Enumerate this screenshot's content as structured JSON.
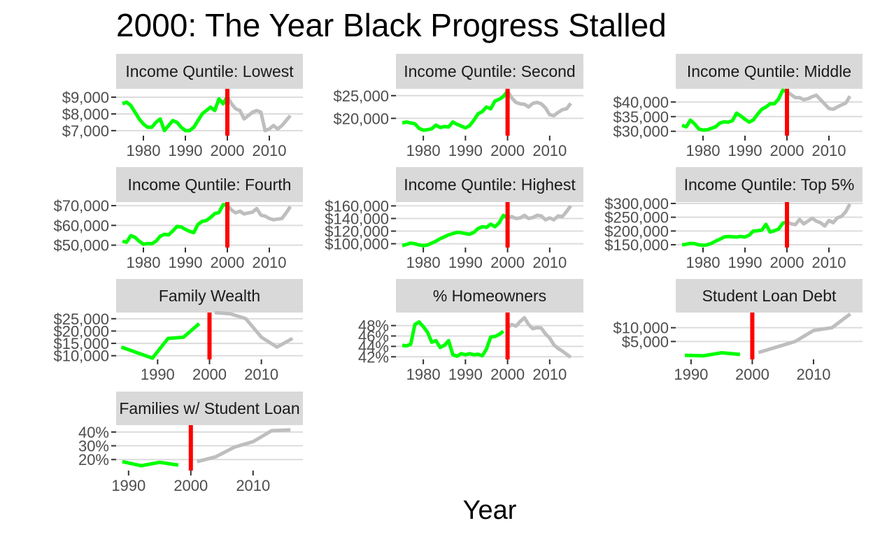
{
  "title": "2000: The Year Black Progress Stalled",
  "xlabel": "Year",
  "colors": {
    "pre": "#00ff00",
    "post": "#bebebe",
    "vline": "#ff0000",
    "strip": "#d9d9d9"
  },
  "chart_data": [
    {
      "type": "line",
      "title": "Income Quntile: Lowest",
      "xlim": [
        1973.5,
        2018
      ],
      "ylim": [
        6700,
        9500
      ],
      "xticks": [
        1980,
        1990,
        2000,
        2010
      ],
      "xtick_labels": [
        "1980",
        "1990",
        "2000",
        "2010"
      ],
      "yticks": [
        7000,
        8000,
        9000
      ],
      "ytick_labels": [
        "$7,000",
        "$8,000",
        "$9,000"
      ],
      "vline": 2000,
      "series": [
        {
          "role": "pre",
          "x": [
            1975,
            1976,
            1977,
            1978,
            1979,
            1980,
            1981,
            1982,
            1983,
            1984,
            1985,
            1986,
            1987,
            1988,
            1989,
            1990,
            1991,
            1992,
            1993,
            1994,
            1995,
            1996,
            1997,
            1998,
            1999,
            2000
          ],
          "y": [
            8600,
            8700,
            8500,
            8100,
            7700,
            7400,
            7200,
            7200,
            7500,
            7700,
            7000,
            7300,
            7600,
            7500,
            7200,
            7000,
            7000,
            7200,
            7600,
            8000,
            8200,
            8400,
            8200,
            8900,
            8600,
            9050
          ]
        },
        {
          "role": "post",
          "x": [
            2000,
            2001,
            2002,
            2003,
            2004,
            2005,
            2006,
            2007,
            2008,
            2009,
            2010,
            2011,
            2012,
            2013,
            2014,
            2015
          ],
          "y": [
            9050,
            8600,
            8300,
            8200,
            7700,
            7900,
            8100,
            8200,
            8100,
            7000,
            7100,
            7300,
            7100,
            7300,
            7600,
            7900
          ]
        }
      ]
    },
    {
      "type": "line",
      "title": "Income Quntile: Second",
      "xlim": [
        1973.5,
        2018
      ],
      "ylim": [
        16200,
        26500
      ],
      "xticks": [
        1980,
        1990,
        2000,
        2010
      ],
      "xtick_labels": [
        "1980",
        "1990",
        "2000",
        "2010"
      ],
      "yticks": [
        20000,
        25000
      ],
      "ytick_labels": [
        "$20,000",
        "$25,000"
      ],
      "vline": 2000,
      "series": [
        {
          "role": "pre",
          "x": [
            1975,
            1976,
            1977,
            1978,
            1979,
            1980,
            1981,
            1982,
            1983,
            1984,
            1985,
            1986,
            1987,
            1988,
            1989,
            1990,
            1991,
            1992,
            1993,
            1994,
            1995,
            1996,
            1997,
            1998,
            1999,
            2000
          ],
          "y": [
            19000,
            19200,
            19000,
            18800,
            17800,
            17400,
            17500,
            17700,
            18500,
            18000,
            18200,
            18100,
            19200,
            18700,
            18300,
            17900,
            18400,
            19600,
            21000,
            21500,
            22500,
            22100,
            23800,
            24200,
            24800,
            26000
          ]
        },
        {
          "role": "post",
          "x": [
            2000,
            2001,
            2002,
            2003,
            2004,
            2005,
            2006,
            2007,
            2008,
            2009,
            2010,
            2011,
            2012,
            2013,
            2014,
            2015
          ],
          "y": [
            26000,
            24500,
            23500,
            23200,
            23100,
            22500,
            23300,
            23500,
            23200,
            22300,
            20800,
            20600,
            21300,
            21900,
            22100,
            23300
          ]
        }
      ]
    },
    {
      "type": "line",
      "title": "Income Quntile: Middle",
      "xlim": [
        1973.5,
        2018
      ],
      "ylim": [
        28500,
        44500
      ],
      "xticks": [
        1980,
        1990,
        2000,
        2010
      ],
      "xtick_labels": [
        "1980",
        "1990",
        "2000",
        "2010"
      ],
      "yticks": [
        30000,
        35000,
        40000
      ],
      "ytick_labels": [
        "$30,000",
        "$35,000",
        "$40,000"
      ],
      "vline": 2000,
      "series": [
        {
          "role": "pre",
          "x": [
            1975,
            1976,
            1977,
            1978,
            1979,
            1980,
            1981,
            1982,
            1983,
            1984,
            1985,
            1986,
            1987,
            1988,
            1989,
            1990,
            1991,
            1992,
            1993,
            1994,
            1995,
            1996,
            1997,
            1998,
            1999,
            2000
          ],
          "y": [
            32000,
            31500,
            33800,
            32500,
            30800,
            30400,
            30500,
            31000,
            31500,
            32800,
            33200,
            33100,
            33600,
            36200,
            35200,
            34100,
            33100,
            33900,
            35800,
            37500,
            38300,
            39400,
            39400,
            41000,
            44000,
            43500
          ]
        },
        {
          "role": "post",
          "x": [
            2000,
            2001,
            2002,
            2003,
            2004,
            2005,
            2006,
            2007,
            2008,
            2009,
            2010,
            2011,
            2012,
            2013,
            2014,
            2015
          ],
          "y": [
            43500,
            42500,
            41500,
            41500,
            40800,
            41100,
            41800,
            42300,
            40800,
            39300,
            37800,
            37500,
            38300,
            39000,
            39600,
            42000
          ]
        }
      ]
    },
    {
      "type": "line",
      "title": "Income Quntile: Fourth",
      "xlim": [
        1973.5,
        2018
      ],
      "ylim": [
        48800,
        71800
      ],
      "xticks": [
        1980,
        1990,
        2000,
        2010
      ],
      "xtick_labels": [
        "1980",
        "1990",
        "2000",
        "2010"
      ],
      "yticks": [
        50000,
        60000,
        70000
      ],
      "ytick_labels": [
        "$50,000",
        "$60,000",
        "$70,000"
      ],
      "vline": 2000,
      "series": [
        {
          "role": "pre",
          "x": [
            1975,
            1976,
            1977,
            1978,
            1979,
            1980,
            1981,
            1982,
            1983,
            1984,
            1985,
            1986,
            1987,
            1988,
            1989,
            1990,
            1991,
            1992,
            1993,
            1994,
            1995,
            1996,
            1997,
            1998,
            1999,
            2000
          ],
          "y": [
            52000,
            51500,
            54800,
            54000,
            52000,
            50500,
            50800,
            50700,
            52000,
            54500,
            55500,
            55200,
            57200,
            59500,
            59200,
            58000,
            57000,
            56300,
            60500,
            62000,
            62500,
            64000,
            66000,
            66500,
            70500,
            70200
          ]
        },
        {
          "role": "post",
          "x": [
            2000,
            2001,
            2002,
            2003,
            2004,
            2005,
            2006,
            2007,
            2008,
            2009,
            2010,
            2011,
            2012,
            2013,
            2014,
            2015
          ],
          "y": [
            70200,
            67800,
            66300,
            67200,
            65800,
            66300,
            66700,
            68500,
            65200,
            64700,
            63500,
            62900,
            63200,
            63500,
            66300,
            69500
          ]
        }
      ]
    },
    {
      "type": "line",
      "title": "Income Quntile: Highest",
      "xlim": [
        1973.5,
        2018
      ],
      "ylim": [
        94000,
        166000
      ],
      "xticks": [
        1980,
        1990,
        2000,
        2010
      ],
      "xtick_labels": [
        "1980",
        "1990",
        "2000",
        "2010"
      ],
      "yticks": [
        100000,
        120000,
        140000,
        160000
      ],
      "ytick_labels": [
        "$100,000",
        "$120,000",
        "$140,000",
        "$160,000"
      ],
      "vline": 2000,
      "series": [
        {
          "role": "pre",
          "x": [
            1975,
            1976,
            1977,
            1978,
            1979,
            1980,
            1981,
            1982,
            1983,
            1984,
            1985,
            1986,
            1987,
            1988,
            1989,
            1990,
            1991,
            1992,
            1993,
            1994,
            1995,
            1996,
            1997,
            1998,
            1999,
            2000
          ],
          "y": [
            97000,
            99000,
            101000,
            100000,
            98000,
            97000,
            98000,
            101000,
            104000,
            108000,
            111000,
            114000,
            116000,
            118000,
            117500,
            116000,
            115000,
            118000,
            124000,
            127000,
            126000,
            131000,
            127000,
            133000,
            145000,
            141000
          ]
        },
        {
          "role": "post",
          "x": [
            2000,
            2001,
            2002,
            2003,
            2004,
            2005,
            2006,
            2007,
            2008,
            2009,
            2010,
            2011,
            2012,
            2013,
            2014,
            2015
          ],
          "y": [
            141000,
            143000,
            140000,
            141000,
            145000,
            140000,
            141500,
            145000,
            144000,
            138000,
            141000,
            138000,
            144000,
            143000,
            151000,
            160000
          ]
        }
      ]
    },
    {
      "type": "line",
      "title": "Income Quntile: Top 5%",
      "xlim": [
        1973.5,
        2018
      ],
      "ylim": [
        140000,
        305000
      ],
      "xticks": [
        1980,
        1990,
        2000,
        2010
      ],
      "xtick_labels": [
        "1980",
        "1990",
        "2000",
        "2010"
      ],
      "yticks": [
        150000,
        200000,
        250000,
        300000
      ],
      "ytick_labels": [
        "$150,000",
        "$200,000",
        "$250,000",
        "$300,000"
      ],
      "vline": 2000,
      "series": [
        {
          "role": "pre",
          "x": [
            1975,
            1976,
            1977,
            1978,
            1979,
            1980,
            1981,
            1982,
            1983,
            1984,
            1985,
            1986,
            1987,
            1988,
            1989,
            1990,
            1991,
            1992,
            1993,
            1994,
            1995,
            1996,
            1997,
            1998,
            1999,
            2000
          ],
          "y": [
            150000,
            152000,
            155000,
            154000,
            150000,
            148000,
            150000,
            155000,
            163000,
            170000,
            178000,
            180000,
            179000,
            178000,
            180000,
            178000,
            185000,
            200000,
            201000,
            203000,
            224000,
            196000,
            201000,
            207000,
            228000,
            233000
          ]
        },
        {
          "role": "post",
          "x": [
            2000,
            2001,
            2002,
            2003,
            2004,
            2005,
            2006,
            2007,
            2008,
            2009,
            2010,
            2011,
            2012,
            2013,
            2014,
            2015
          ],
          "y": [
            233000,
            226000,
            223000,
            242000,
            226000,
            236000,
            246000,
            236000,
            230000,
            218000,
            238000,
            230000,
            248000,
            253000,
            270000,
            298000
          ]
        }
      ]
    },
    {
      "type": "line",
      "title": "Family Wealth",
      "xlim": [
        1982,
        2018
      ],
      "ylim": [
        8500,
        27500
      ],
      "xticks": [
        1990,
        2000,
        2010
      ],
      "xtick_labels": [
        "1990",
        "2000",
        "2010"
      ],
      "yticks": [
        10000,
        15000,
        20000,
        25000
      ],
      "ytick_labels": [
        "$10,000",
        "$15,000",
        "$20,000",
        "$25,000"
      ],
      "vline": 2000,
      "series": [
        {
          "role": "pre",
          "x": [
            1983,
            1989,
            1992,
            1995,
            1998
          ],
          "y": [
            13500,
            9000,
            17000,
            17500,
            23000
          ]
        },
        {
          "role": "post",
          "x": [
            2001,
            2004,
            2007,
            2010,
            2013,
            2016
          ],
          "y": [
            27500,
            27000,
            25000,
            17500,
            13500,
            17000
          ]
        }
      ]
    },
    {
      "type": "line",
      "title": "% Homeowners",
      "xlim": [
        1973.5,
        2018
      ],
      "ylim": [
        41.5,
        50.5
      ],
      "xticks": [
        1980,
        1990,
        2000,
        2010
      ],
      "xtick_labels": [
        "1980",
        "1990",
        "2000",
        "2010"
      ],
      "yticks": [
        42,
        44,
        46,
        48
      ],
      "ytick_labels": [
        "42%",
        "44%",
        "46%",
        "48%"
      ],
      "vline": 2000,
      "series": [
        {
          "role": "pre",
          "x": [
            1975,
            1976,
            1977,
            1978,
            1979,
            1980,
            1981,
            1982,
            1983,
            1984,
            1985,
            1986,
            1987,
            1988,
            1989,
            1990,
            1991,
            1992,
            1993,
            1994,
            1995,
            1996,
            1997,
            1998,
            1999
          ],
          "y": [
            44.2,
            44.1,
            44.4,
            48.2,
            48.7,
            47.8,
            46.7,
            44.8,
            45.1,
            43.8,
            44.2,
            45.1,
            42.4,
            42.1,
            42.6,
            42.4,
            42.6,
            42.4,
            42.5,
            42.2,
            43.5,
            45.8,
            45.9,
            46.3,
            46.9
          ]
        },
        {
          "role": "post",
          "x": [
            2000,
            2001,
            2002,
            2003,
            2004,
            2005,
            2006,
            2007,
            2008,
            2009,
            2010,
            2011,
            2012,
            2013,
            2014,
            2015
          ],
          "y": [
            47.6,
            48.2,
            47.9,
            48.8,
            49.5,
            48.2,
            47.4,
            47.6,
            47.5,
            46.4,
            45.6,
            44.3,
            43.6,
            43.1,
            42.5,
            41.9
          ]
        }
      ]
    },
    {
      "type": "line",
      "title": "Student Loan Debt",
      "xlim": [
        1987.5,
        2018
      ],
      "ylim": [
        -1500,
        15500
      ],
      "xticks": [
        1990,
        2000,
        2010
      ],
      "xtick_labels": [
        "1990",
        "2000",
        "2010"
      ],
      "yticks": [
        5000,
        10000
      ],
      "ytick_labels": [
        "$5,000",
        "$10,000"
      ],
      "vline": 2000,
      "series": [
        {
          "role": "pre",
          "x": [
            1989,
            1992,
            1995,
            1998
          ],
          "y": [
            0,
            -200,
            900,
            300
          ]
        },
        {
          "role": "post",
          "x": [
            2001,
            2004,
            2007,
            2010,
            2013,
            2016
          ],
          "y": [
            1000,
            3000,
            5000,
            9000,
            10000,
            15000
          ]
        }
      ]
    },
    {
      "type": "line",
      "title": "Families w/ Student Loan",
      "xlim": [
        1988,
        2018
      ],
      "ylim": [
        12,
        45
      ],
      "xticks": [
        1990,
        2000,
        2010
      ],
      "xtick_labels": [
        "1990",
        "2000",
        "2010"
      ],
      "yticks": [
        20,
        30,
        40
      ],
      "ytick_labels": [
        "20%",
        "30%",
        "40%"
      ],
      "vline": 2000,
      "series": [
        {
          "role": "pre",
          "x": [
            1989,
            1992,
            1995,
            1998
          ],
          "y": [
            18.5,
            15.5,
            18.0,
            16.0
          ]
        },
        {
          "role": "post",
          "x": [
            2001,
            2004,
            2007,
            2010,
            2013,
            2016
          ],
          "y": [
            18.5,
            22.0,
            29.0,
            33.0,
            41.0,
            41.5
          ]
        }
      ]
    }
  ]
}
